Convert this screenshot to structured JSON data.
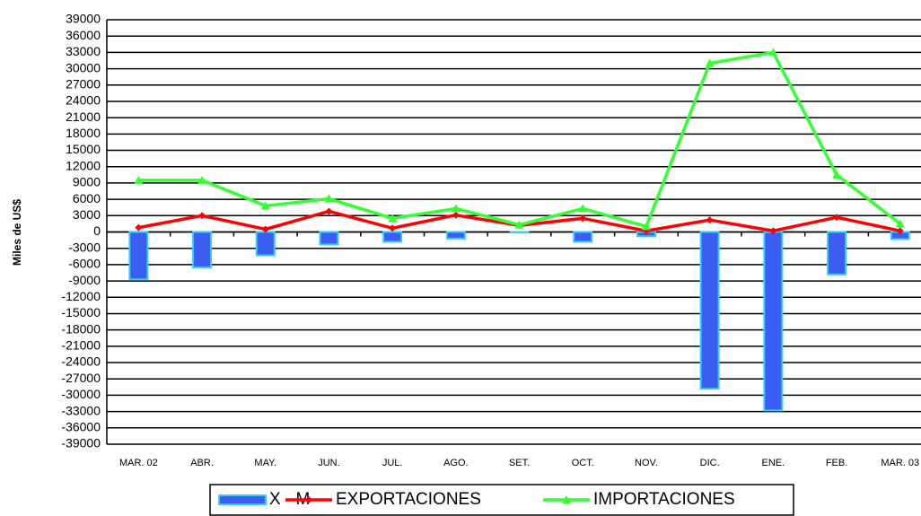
{
  "chart_data": {
    "type": "bar",
    "y_label": "Miles de US$",
    "categories": [
      "MAR. 02",
      "ABR.",
      "MAY.",
      "JUN.",
      "JUL.",
      "AGO.",
      "SET.",
      "OCT.",
      "NOV.",
      "DIC.",
      "ENE.",
      "FEB.",
      "MAR. 03"
    ],
    "series": [
      {
        "name": "X - M",
        "type": "bar",
        "color": "#3c5ef0",
        "values": [
          -8700,
          -6500,
          -4300,
          -2300,
          -1800,
          -1200,
          -100,
          -1800,
          -800,
          -28800,
          -32800,
          -7800,
          -1300
        ]
      },
      {
        "name": "EXPORTACIONES",
        "type": "line",
        "color": "#ff0000",
        "values": [
          800,
          3000,
          500,
          3800,
          700,
          3100,
          1200,
          2500,
          200,
          2200,
          200,
          2700,
          200
        ]
      },
      {
        "name": "IMPORTACIONES",
        "type": "line",
        "color": "#33ff33",
        "values": [
          9500,
          9500,
          4800,
          6100,
          2500,
          4300,
          1300,
          4300,
          1000,
          31000,
          33000,
          10500,
          1500
        ]
      }
    ],
    "ylim": [
      -39000,
      39000
    ],
    "yticks": [
      -39000,
      -36000,
      -33000,
      -30000,
      -27000,
      -24000,
      -21000,
      -18000,
      -15000,
      -12000,
      -9000,
      -6000,
      -3000,
      0,
      3000,
      6000,
      9000,
      12000,
      15000,
      18000,
      21000,
      24000,
      27000,
      30000,
      33000,
      36000,
      39000
    ],
    "grid": true
  }
}
